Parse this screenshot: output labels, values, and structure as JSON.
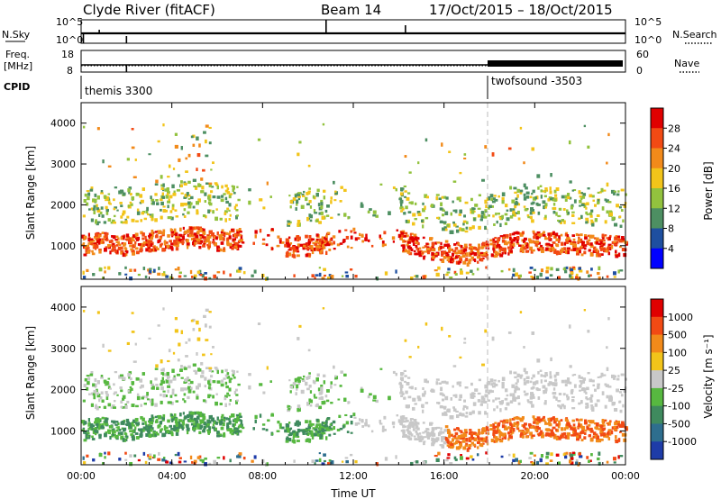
{
  "header": {
    "station": "Clyde River (fitACF)",
    "beam": "Beam 14",
    "date_range": "17/Oct/2015 – 18/Oct/2015"
  },
  "panels": {
    "nsky_label": "N.Sky",
    "nsearch_label": "N.Search",
    "nsky_ticks": [
      "10^5",
      "10^0"
    ],
    "nsearch_ticks": [
      "10^5",
      "10^0"
    ],
    "freq_label_1": "Freq.",
    "freq_label_2": "[MHz]",
    "freq_ticks": [
      "18",
      "8"
    ],
    "nave_label": "Nave",
    "nave_ticks": [
      "60",
      "0"
    ],
    "cpid_label": "CPID",
    "cpid_segments": [
      {
        "name": "themis 3300",
        "start_hour": 0
      },
      {
        "name": "twofsound -3503",
        "start_hour": 18
      }
    ]
  },
  "chart_data": [
    {
      "type": "heatmap",
      "title": "",
      "ylabel": "Slant Range [km]",
      "xlabel": "",
      "x_ticks": [
        "00:00",
        "04:00",
        "08:00",
        "12:00",
        "16:00",
        "20:00",
        "00:00"
      ],
      "xlim_hours": [
        0,
        24
      ],
      "y_ticks": [
        1000,
        2000,
        3000,
        4000
      ],
      "ylim": [
        180,
        4500
      ],
      "colorbar": {
        "label": "Power [dB]",
        "ticks": [
          "4",
          "8",
          "12",
          "16",
          "20",
          "24",
          "28"
        ],
        "colors": [
          "#0000ff",
          "#1e4fa0",
          "#4d8f62",
          "#92c23e",
          "#f2c41a",
          "#f28a1a",
          "#f24a14",
          "#e00000"
        ]
      },
      "band_profile_hours": [
        0,
        1,
        2,
        3,
        4,
        5,
        6,
        7,
        8,
        9,
        10,
        11,
        12,
        13,
        14,
        15,
        16,
        17,
        18,
        19,
        20,
        21,
        22,
        23,
        24
      ],
      "band_profile_km": [
        1050,
        1100,
        1050,
        1150,
        1200,
        1250,
        1150,
        1200,
        null,
        1000,
        1050,
        1100,
        null,
        null,
        1150,
        1000,
        900,
        800,
        950,
        1100,
        1150,
        1100,
        1050,
        1050,
        1000
      ]
    },
    {
      "type": "heatmap",
      "title": "",
      "ylabel": "Slant Range [km]",
      "xlabel": "Time UT",
      "x_ticks": [
        "00:00",
        "04:00",
        "08:00",
        "12:00",
        "16:00",
        "20:00",
        "00:00"
      ],
      "xlim_hours": [
        0,
        24
      ],
      "y_ticks": [
        1000,
        2000,
        3000,
        4000
      ],
      "ylim": [
        180,
        4500
      ],
      "colorbar": {
        "label": "Velocity [m s⁻¹]",
        "ticks": [
          "1000",
          "500",
          "100",
          "25",
          "-25",
          "-100",
          "-500",
          "-1000"
        ],
        "colors": [
          "#1e3ca8",
          "#2e6e8e",
          "#3f8a5e",
          "#57b840",
          "#c8c8c8",
          "#f2c41a",
          "#f28a1a",
          "#f24a14",
          "#e00000"
        ]
      }
    }
  ]
}
